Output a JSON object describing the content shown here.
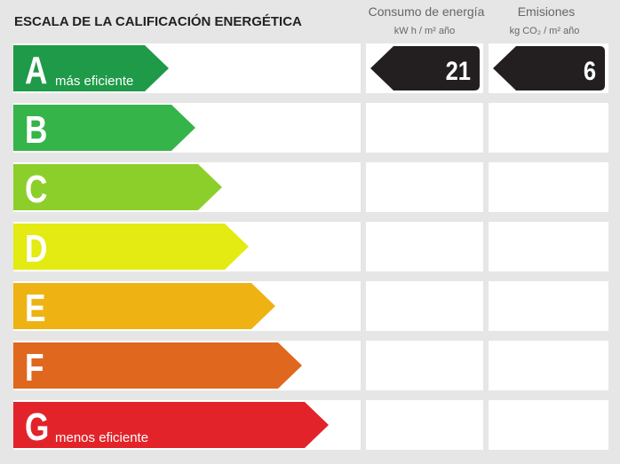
{
  "title": "ESCALA DE LA CALIFICACIÓN ENERGÉTICA",
  "columns": [
    {
      "title": "Consumo de energía",
      "unit": "kW h / m² año"
    },
    {
      "title": "Emisiones",
      "unit": "kg CO₂ / m² año"
    }
  ],
  "classes": [
    {
      "letter": "A",
      "label": "más eficiente",
      "color": "#1e9a48"
    },
    {
      "letter": "B",
      "color": "#35b44a"
    },
    {
      "letter": "C",
      "color": "#8ccf2a"
    },
    {
      "letter": "D",
      "color": "#e3eb12"
    },
    {
      "letter": "E",
      "color": "#eeb312"
    },
    {
      "letter": "F",
      "color": "#e0671e"
    },
    {
      "letter": "G",
      "label": "menos eficiente",
      "color": "#e2242a"
    }
  ],
  "ratings": [
    {
      "class": "A",
      "value": 21
    },
    {
      "class": "A",
      "value": 6
    }
  ]
}
